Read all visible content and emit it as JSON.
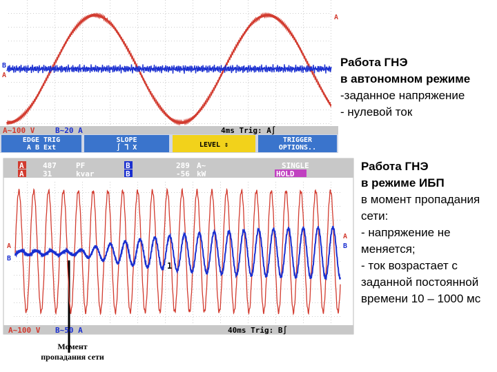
{
  "scope1": {
    "markers": [
      "A",
      "B",
      "A"
    ],
    "status": [
      "A~100 V",
      "B~20 A",
      "4ms Trig: A∫"
    ],
    "menu": [
      [
        "EDGE TRIG",
        "A  B  Ext"
      ],
      [
        "SLOPE",
        "∫  ⅂  X"
      ],
      [
        "LEVEL ⇕"
      ],
      [
        "TRIGGER",
        "OPTIONS.."
      ]
    ]
  },
  "text1": {
    "title": [
      "Работа ГНЭ",
      "в автономном режиме"
    ],
    "lines": [
      "-заданное напряжение",
      "- нулевой ток"
    ]
  },
  "scope2": {
    "header": [
      "A",
      "A",
      "487",
      "31",
      "PF",
      "kvar",
      "B",
      "B",
      "289",
      "-56",
      "A~",
      "kW",
      "SINGLE",
      "HOLD"
    ],
    "markers": [
      "A",
      "B",
      "A",
      "B"
    ],
    "status": [
      "A~100 V",
      "B~50 A",
      "40ms Trig: B∫"
    ],
    "cursor": "1"
  },
  "text2": {
    "title": [
      "Работа ГНЭ",
      "в режиме ИБП"
    ],
    "lines": [
      "в момент пропадания",
      "сети:",
      "- напряжение не",
      "меняется;",
      "- ток возрастает с",
      "заданной постоянной",
      "времени 10 – 1000 мс"
    ]
  },
  "caption": [
    "Момент",
    "пропадания сети"
  ]
}
